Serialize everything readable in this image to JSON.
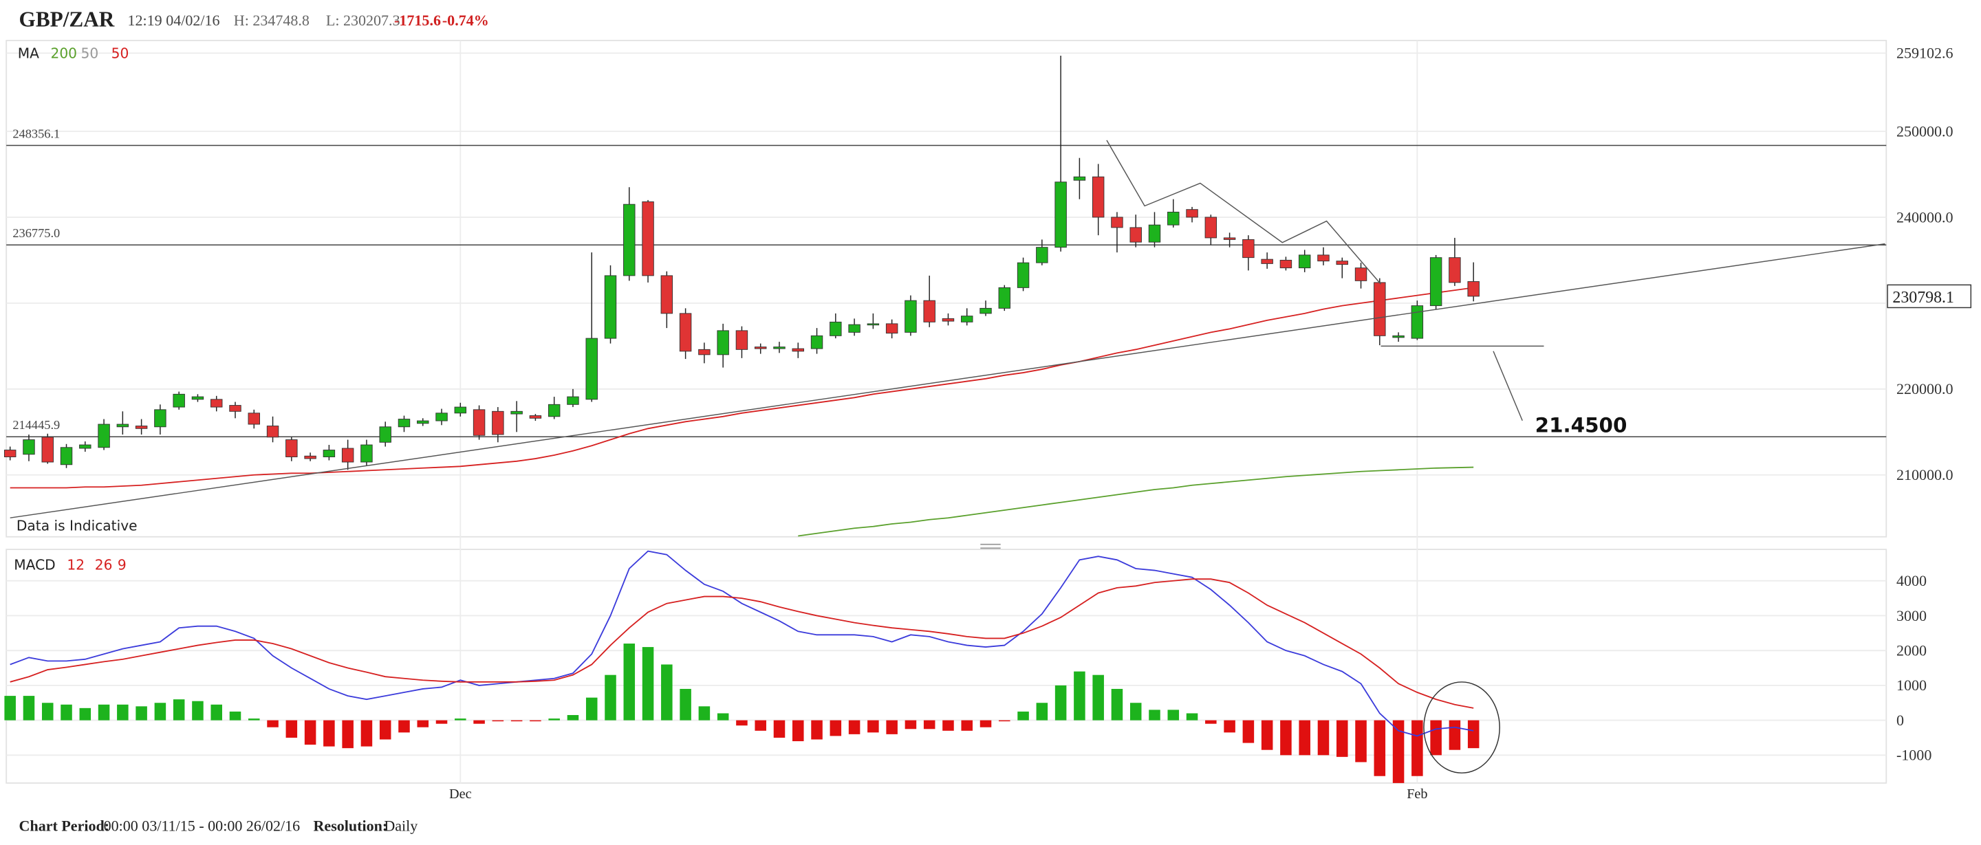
{
  "header": {
    "symbol": "GBP/ZAR",
    "time": "12:19 04/02/16",
    "high": "H: 234748.8",
    "low": "L: 230207.3",
    "change": "-1715.6",
    "change_pct": "-0.74%"
  },
  "footer": {
    "period_label": "Chart Period:",
    "period": "00:00 03/11/15 - 00:00 26/02/16",
    "resolution_label": "Resolution:",
    "resolution": "Daily"
  },
  "chart_data": [
    {
      "type": "candlestick",
      "legend_title": "MA",
      "note": "Data is Indicative",
      "annotation": "21.4500",
      "categories": [
        null,
        null,
        null,
        null,
        null,
        null,
        null,
        null,
        null,
        null,
        null,
        null,
        null,
        null,
        null,
        null,
        null,
        null,
        null,
        null,
        null,
        null,
        null,
        null,
        "Dec",
        null,
        null,
        null,
        null,
        null,
        null,
        null,
        null,
        null,
        null,
        null,
        null,
        null,
        null,
        null,
        null,
        null,
        null,
        null,
        null,
        null,
        null,
        null,
        null,
        null,
        null,
        null,
        null,
        null,
        null,
        null,
        null,
        null,
        null,
        null,
        null,
        null,
        null,
        null,
        null,
        null,
        null,
        null,
        null,
        null,
        null,
        null,
        null,
        null,
        null,
        "Feb",
        null,
        null,
        null
      ],
      "open": [
        212900,
        212400,
        214400,
        211200,
        213100,
        213200,
        215600,
        215700,
        215600,
        217900,
        218800,
        218800,
        218100,
        217200,
        215700,
        214100,
        212200,
        212100,
        213100,
        211500,
        213800,
        215600,
        216000,
        216300,
        217200,
        217600,
        217400,
        217100,
        216900,
        216800,
        218200,
        218800,
        225900,
        233200,
        241800,
        233200,
        228800,
        224600,
        224000,
        226800,
        224900,
        224700,
        224700,
        224700,
        226200,
        226600,
        227500,
        227600,
        226600,
        230300,
        228200,
        227800,
        228800,
        229400,
        231800,
        234700,
        236500,
        244300,
        244700,
        240000,
        238800,
        237100,
        239100,
        240900,
        240000,
        237600,
        237400,
        235100,
        235000,
        234100,
        235600,
        234900,
        234100,
        232400,
        226000,
        225900,
        229700,
        235300,
        232513.7
      ],
      "high": [
        213300,
        214700,
        214800,
        213600,
        213900,
        216500,
        217400,
        216500,
        218200,
        219700,
        219400,
        219200,
        218500,
        217600,
        216800,
        214400,
        212600,
        213500,
        214100,
        214100,
        216200,
        216900,
        216600,
        217700,
        218400,
        218100,
        217900,
        218600,
        217100,
        219100,
        220000,
        235900,
        234400,
        243500,
        242000,
        233700,
        229400,
        225400,
        227600,
        227300,
        225300,
        225500,
        225400,
        227100,
        228800,
        228200,
        228800,
        228100,
        230900,
        233200,
        228800,
        229400,
        230300,
        232100,
        235300,
        237400,
        258800,
        246900,
        246200,
        240600,
        240300,
        240600,
        242100,
        241200,
        240300,
        238200,
        237900,
        235900,
        235400,
        236200,
        236500,
        235300,
        234700,
        232900,
        226600,
        230300,
        235600,
        237600,
        234748.8
      ],
      "low": [
        211700,
        211600,
        211300,
        210800,
        212700,
        212900,
        214700,
        214700,
        214700,
        217600,
        218500,
        217400,
        216600,
        215400,
        213800,
        211600,
        211600,
        211700,
        210600,
        211100,
        213300,
        215000,
        215700,
        215800,
        216800,
        214100,
        213800,
        215000,
        216300,
        216500,
        217900,
        218500,
        225300,
        232600,
        232400,
        227100,
        223500,
        223000,
        222500,
        223600,
        224100,
        224200,
        223600,
        224100,
        225900,
        226200,
        227000,
        225900,
        226200,
        227200,
        227400,
        227400,
        228500,
        229100,
        231400,
        234400,
        236000,
        242100,
        237900,
        235900,
        236500,
        236500,
        238800,
        239400,
        236800,
        236500,
        233800,
        234000,
        233800,
        233600,
        234400,
        232900,
        231700,
        225100,
        225500,
        225700,
        229300,
        232000,
        230207.3
      ],
      "close": [
        212100,
        214100,
        211500,
        213200,
        213500,
        215900,
        215900,
        215400,
        217600,
        219400,
        219100,
        217900,
        217400,
        215900,
        214400,
        212100,
        211900,
        212900,
        211500,
        213500,
        215600,
        216500,
        216300,
        217200,
        217900,
        214600,
        214700,
        217400,
        216600,
        218200,
        219100,
        225900,
        233200,
        241500,
        233200,
        228800,
        224400,
        224000,
        226800,
        224600,
        224700,
        224900,
        224400,
        226200,
        227800,
        227500,
        227600,
        226500,
        230300,
        227800,
        227900,
        228500,
        229400,
        231800,
        234700,
        236500,
        244100,
        244700,
        240000,
        238800,
        237100,
        239100,
        240600,
        240000,
        237600,
        237400,
        235300,
        234600,
        234100,
        235600,
        234900,
        234500,
        232600,
        226200,
        226200,
        229700,
        235300,
        232400,
        230798.1
      ],
      "up_color": "#1db31d",
      "down_color": "#e03434",
      "series": [
        {
          "name": "200",
          "color": "#5aa02c",
          "values": [
            null,
            null,
            null,
            null,
            null,
            null,
            null,
            null,
            null,
            null,
            null,
            null,
            null,
            null,
            null,
            null,
            null,
            null,
            null,
            null,
            null,
            null,
            null,
            null,
            null,
            null,
            null,
            null,
            null,
            null,
            null,
            null,
            null,
            null,
            null,
            null,
            null,
            null,
            null,
            null,
            null,
            null,
            202900,
            203200,
            203500,
            203800,
            204000,
            204300,
            204500,
            204800,
            205000,
            205300,
            205600,
            205900,
            206200,
            206500,
            206800,
            207100,
            207400,
            207700,
            208000,
            208300,
            208500,
            208800,
            209000,
            209200,
            209400,
            209600,
            209800,
            209950,
            210100,
            210250,
            210400,
            210500,
            210600,
            210700,
            210800,
            210850,
            210900
          ]
        },
        {
          "name": "50",
          "color": "#999999",
          "values": null
        },
        {
          "name": "50",
          "color": "#d62020",
          "values": [
            208500,
            208500,
            208500,
            208500,
            208600,
            208600,
            208700,
            208800,
            209000,
            209200,
            209400,
            209600,
            209800,
            210000,
            210100,
            210200,
            210200,
            210300,
            210400,
            210500,
            210600,
            210700,
            210800,
            210900,
            211000,
            211200,
            211400,
            211600,
            211900,
            212300,
            212800,
            213400,
            214100,
            214800,
            215400,
            215800,
            216200,
            216500,
            216800,
            217200,
            217500,
            217800,
            218100,
            218400,
            218700,
            219000,
            219400,
            219700,
            220000,
            220300,
            220600,
            220900,
            221200,
            221600,
            221900,
            222300,
            222800,
            223200,
            223700,
            224200,
            224600,
            225100,
            225600,
            226100,
            226600,
            227000,
            227500,
            228000,
            228400,
            228800,
            229300,
            229700,
            230000,
            230300,
            230600,
            230900,
            231200,
            231500,
            231800
          ]
        }
      ],
      "levels": [
        248356.1,
        {
          "value": 236775.0,
          "label": "236775.0"
        },
        214445.9
      ],
      "ylim": [
        202800,
        259102.6
      ],
      "yticks": [
        {
          "value": 210000,
          "label": "210000.0"
        },
        {
          "value": 220000,
          "label": "220000.0"
        },
        {
          "value": 230000,
          "label": "230000.0"
        },
        {
          "value": 240000,
          "label": "240000.0"
        },
        {
          "value": 250000,
          "label": "250000.0"
        },
        259102.6
      ],
      "grid": true
    },
    {
      "type": "macd",
      "legend_title": "MACD",
      "params": [
        "12",
        "26",
        "9"
      ],
      "histogram": [
        700,
        700,
        500,
        450,
        350,
        450,
        450,
        400,
        500,
        600,
        550,
        450,
        250,
        50,
        -200,
        -500,
        -700,
        -750,
        -800,
        -750,
        -550,
        -350,
        -200,
        -100,
        50,
        -100,
        -30,
        -30,
        -30,
        50,
        150,
        650,
        1300,
        2200,
        2100,
        1600,
        900,
        400,
        200,
        -150,
        -300,
        -500,
        -600,
        -550,
        -450,
        -400,
        -350,
        -400,
        -250,
        -250,
        -300,
        -300,
        -200,
        -30,
        250,
        500,
        1000,
        1400,
        1300,
        900,
        500,
        300,
        300,
        200,
        -100,
        -350,
        -650,
        -850,
        -1000,
        -1000,
        -1000,
        -1050,
        -1200,
        -1600,
        -1800,
        -1600,
        -1000,
        -850,
        -800
      ],
      "up_color": "#1db31d",
      "down_color": "#e01010",
      "series": [
        {
          "color": "#3b3bdb",
          "values": [
            1600,
            1800,
            1700,
            1700,
            1750,
            1900,
            2050,
            2150,
            2250,
            2650,
            2700,
            2700,
            2550,
            2350,
            1850,
            1500,
            1200,
            900,
            700,
            600,
            700,
            800,
            900,
            950,
            1150,
            1000,
            1050,
            1100,
            1150,
            1200,
            1350,
            1900,
            3000,
            4350,
            4850,
            4750,
            4300,
            3900,
            3700,
            3350,
            3100,
            2850,
            2550,
            2450,
            2450,
            2450,
            2400,
            2250,
            2450,
            2400,
            2250,
            2150,
            2100,
            2150,
            2550,
            3050,
            3800,
            4600,
            4700,
            4600,
            4350,
            4300,
            4200,
            4100,
            3750,
            3300,
            2800,
            2250,
            2000,
            1850,
            1600,
            1400,
            1050,
            200,
            -300,
            -450,
            -250,
            -200,
            -300
          ]
        },
        {
          "color": "#d62020",
          "values": [
            1100,
            1250,
            1450,
            1520,
            1600,
            1680,
            1750,
            1850,
            1950,
            2050,
            2150,
            2230,
            2300,
            2300,
            2200,
            2050,
            1850,
            1650,
            1500,
            1380,
            1250,
            1200,
            1150,
            1120,
            1100,
            1100,
            1100,
            1100,
            1120,
            1150,
            1300,
            1600,
            2150,
            2650,
            3100,
            3350,
            3450,
            3550,
            3550,
            3500,
            3400,
            3250,
            3120,
            3000,
            2900,
            2800,
            2720,
            2650,
            2600,
            2550,
            2480,
            2400,
            2350,
            2350,
            2500,
            2700,
            2950,
            3300,
            3650,
            3800,
            3850,
            3950,
            4000,
            4050,
            4050,
            3950,
            3650,
            3300,
            3050,
            2800,
            2500,
            2200,
            1900,
            1500,
            1050,
            800,
            600,
            450,
            350
          ]
        }
      ],
      "ylim": [
        -1800,
        4900
      ],
      "yticks": [
        -1000,
        0,
        1000,
        2000,
        3000,
        4000
      ],
      "grid": true
    }
  ]
}
